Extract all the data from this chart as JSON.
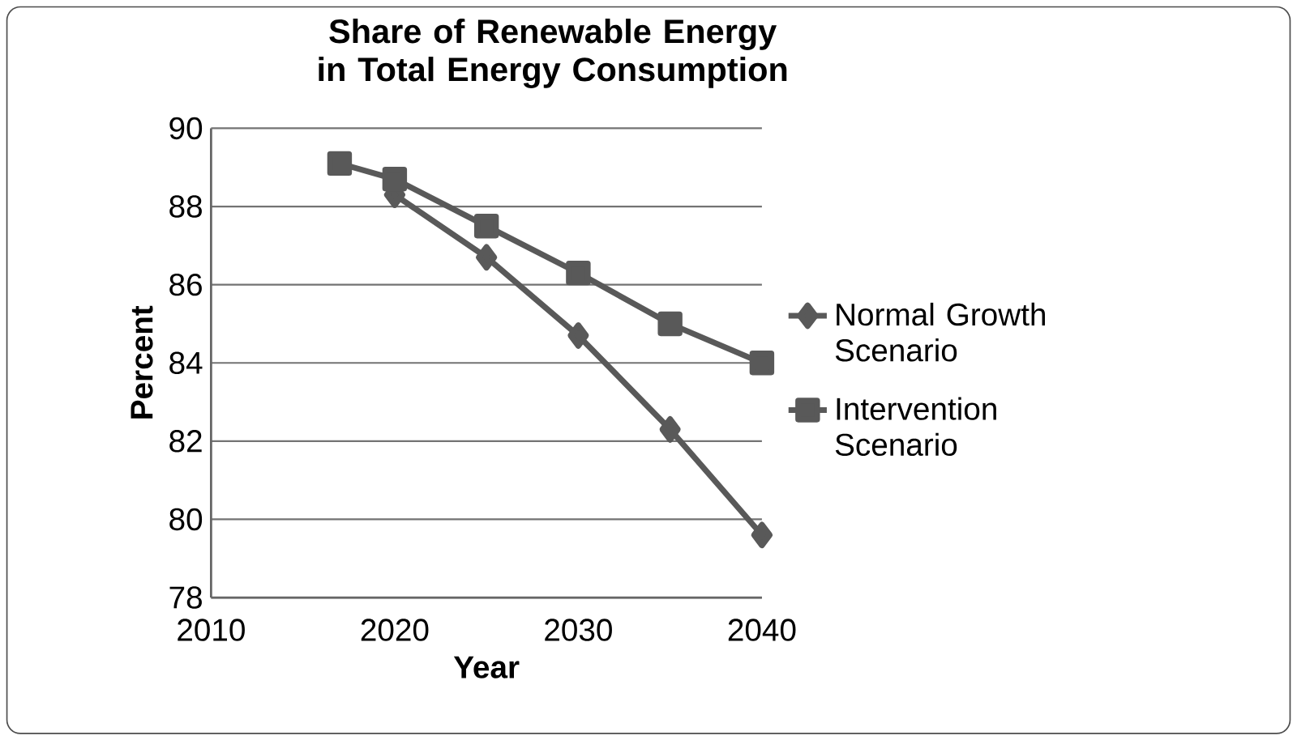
{
  "chart_data": {
    "type": "line",
    "title": "Share of Renewable Energy in Total Energy Consumption",
    "xlabel": "Year",
    "ylabel": "Percent",
    "xlim": [
      2010,
      2040
    ],
    "xticks": [
      2010,
      2020,
      2030,
      2040
    ],
    "ylim": [
      78,
      90
    ],
    "yticks": [
      78,
      80,
      82,
      84,
      86,
      88,
      90
    ],
    "grid": "y",
    "legend": "right",
    "line_style": "solid",
    "series": [
      {
        "name": "Normal Growth Scenario",
        "color": "#595959",
        "marker": "diamond",
        "x": [
          2020,
          2025,
          2030,
          2035,
          2040
        ],
        "values": [
          88.3,
          86.7,
          84.7,
          82.3,
          79.6
        ]
      },
      {
        "name": "Intervention Scenario",
        "color": "#595959",
        "marker": "square",
        "x": [
          2017,
          2020,
          2025,
          2030,
          2035,
          2040
        ],
        "values": [
          89.1,
          88.7,
          87.5,
          86.3,
          85.0,
          84.0
        ]
      }
    ]
  }
}
